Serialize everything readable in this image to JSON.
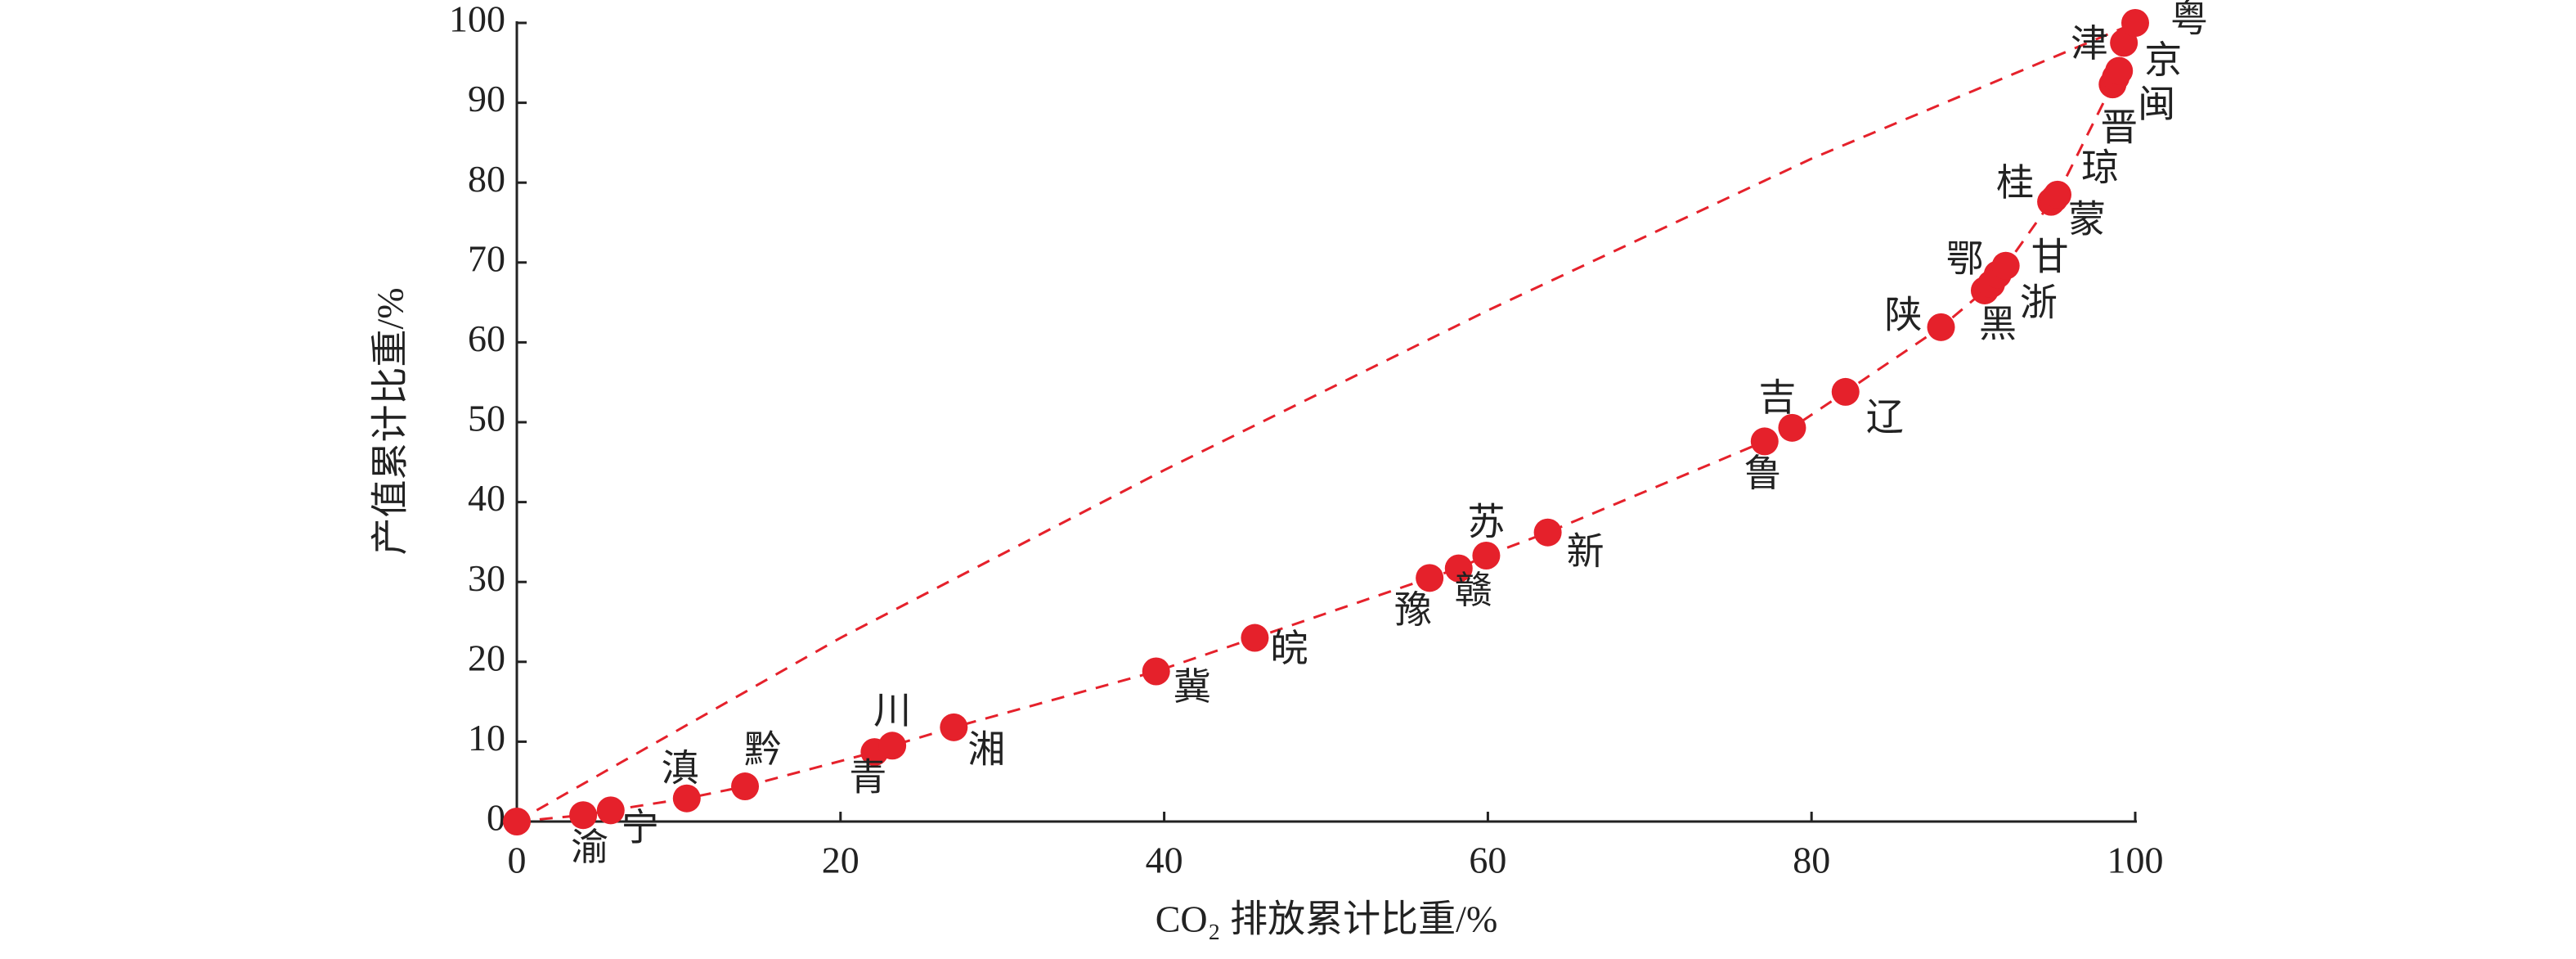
{
  "chart_data": {
    "type": "scatter",
    "x_label": "CO₂ 排放累计比重/%",
    "y_label": "产值累计比重/%",
    "color": "#e5212b",
    "x": [
      0,
      4.1,
      5.8,
      10.5,
      14.1,
      22.1,
      23.2,
      27.0,
      39.5,
      45.6,
      56.4,
      58.2,
      59.9,
      63.7,
      77.1,
      78.8,
      82.1,
      88.0,
      90.7,
      91.1,
      91.5,
      92.0,
      94.8,
      95.0,
      95.2,
      98.6,
      98.8,
      99.0,
      99.3,
      100
    ],
    "values": [
      0,
      0.8,
      1.4,
      2.9,
      4.4,
      8.7,
      9.5,
      11.8,
      18.8,
      23.0,
      30.5,
      31.7,
      33.3,
      36.2,
      47.6,
      49.3,
      53.8,
      61.9,
      66.5,
      67.3,
      68.5,
      69.6,
      77.6,
      78.0,
      78.5,
      92.3,
      93.2,
      94.0,
      97.5,
      100
    ],
    "labels": [
      null,
      "渝",
      "宁",
      "滇",
      "黔",
      "青",
      "川",
      "湘",
      "冀",
      "皖",
      "豫",
      "赣",
      "苏",
      "新",
      "鲁",
      "吉",
      "辽",
      "陕",
      "黑",
      "浙",
      "鄂",
      "甘",
      "桂",
      "蒙",
      "琼",
      "晋",
      "闽",
      "京",
      "津",
      "粤"
    ],
    "connect": true,
    "curve": {
      "x": [
        0,
        20,
        40,
        60,
        80,
        100
      ],
      "values": [
        0,
        23,
        44,
        64,
        83,
        100
      ]
    },
    "xlim": [
      0,
      100
    ],
    "ylim": [
      0,
      100
    ],
    "xticks": [
      0,
      20,
      40,
      60,
      80,
      100
    ],
    "yticks": [
      0,
      10,
      20,
      30,
      40,
      50,
      60,
      70,
      80,
      90,
      100
    ]
  }
}
